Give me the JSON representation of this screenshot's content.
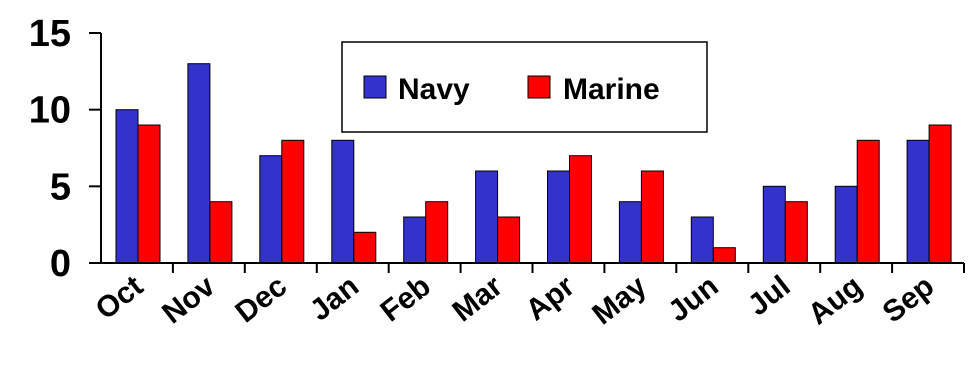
{
  "chart_data": {
    "type": "bar",
    "title": "",
    "xlabel": "",
    "ylabel": "",
    "categories": [
      "Oct",
      "Nov",
      "Dec",
      "Jan",
      "Feb",
      "Mar",
      "Apr",
      "May",
      "Jun",
      "Jul",
      "Aug",
      "Sep"
    ],
    "series": [
      {
        "name": "Navy",
        "color": "#3333cc",
        "values": [
          10,
          13,
          7,
          8,
          3,
          6,
          6,
          4,
          3,
          5,
          5,
          8
        ]
      },
      {
        "name": "Marine",
        "color": "#ff0000",
        "values": [
          9,
          4,
          8,
          2,
          4,
          3,
          7,
          6,
          1,
          4,
          8,
          9
        ]
      }
    ],
    "ylim": [
      0,
      15
    ],
    "yticks": [
      0,
      5,
      10,
      15
    ],
    "grid": false,
    "legend_position": "top-center"
  }
}
